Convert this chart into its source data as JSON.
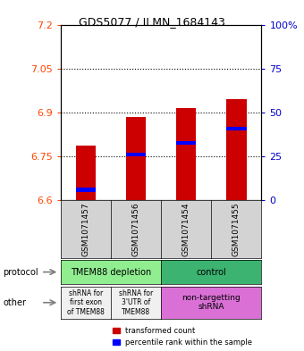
{
  "title": "GDS5077 / ILMN_1684143",
  "samples": [
    "GSM1071457",
    "GSM1071456",
    "GSM1071454",
    "GSM1071455"
  ],
  "red_values": [
    6.785,
    6.885,
    6.915,
    6.945
  ],
  "blue_values": [
    6.635,
    6.755,
    6.795,
    6.845
  ],
  "ylim_left": [
    6.6,
    7.2
  ],
  "ylim_right": [
    0,
    100
  ],
  "yticks_left": [
    6.6,
    6.75,
    6.9,
    7.05,
    7.2
  ],
  "ytick_labels_left": [
    "6.6",
    "6.75",
    "6.9",
    "7.05",
    "7.2"
  ],
  "yticks_right": [
    0,
    25,
    50,
    75,
    100
  ],
  "ytick_labels_right": [
    "0",
    "25",
    "50",
    "75",
    "100%"
  ],
  "hlines": [
    6.75,
    6.9,
    7.05
  ],
  "bar_bottom": 6.6,
  "bar_width": 0.4,
  "protocol_labels": [
    "TMEM88 depletion",
    "control"
  ],
  "protocol_colors": [
    "#90EE90",
    "#3CB371"
  ],
  "other_label1": "shRNA for\nfirst exon\nof TMEM88",
  "other_label2": "shRNA for\n3'UTR of\nTMEM88",
  "other_label3": "non-targetting\nshRNA",
  "other_color1": "#f0f0f0",
  "other_color2": "#f0f0f0",
  "other_color3": "#DA70D6",
  "legend_red": "transformed count",
  "legend_blue": "percentile rank within the sample",
  "left_label_color": "#FF4500",
  "right_label_color": "#0000CD",
  "bar_color": "#CC0000",
  "blue_marker_color": "#0000FF",
  "bg_sample": "#d3d3d3",
  "arrow_color": "#808080"
}
